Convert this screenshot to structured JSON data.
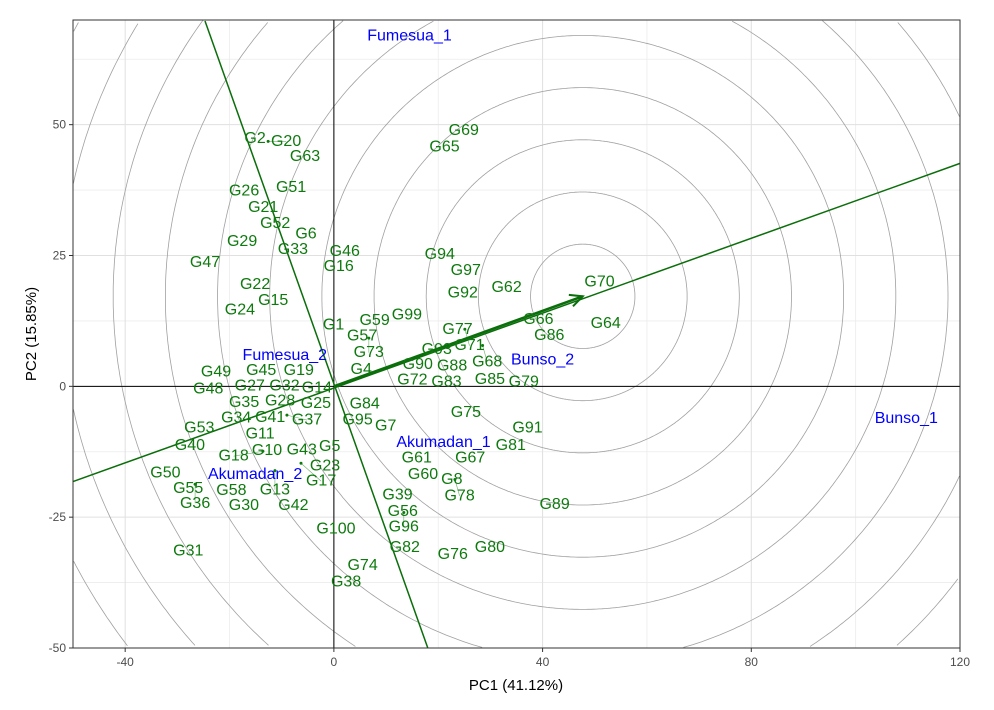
{
  "chart_data": {
    "type": "scatter",
    "xlabel": "PC1 (41.12%)",
    "ylabel": "PC2 (15.85%)",
    "xlim": [
      -50,
      120
    ],
    "ylim": [
      -50,
      70
    ],
    "xticks": [
      -40,
      0,
      40,
      80,
      120
    ],
    "yticks": [
      -50,
      -25,
      0,
      25,
      50
    ],
    "grid": true,
    "colors": {
      "genotype": "#0e7a0e",
      "environment": "#0000ff",
      "axis_line": "#0a6e0a",
      "circle": "#a0a0a0"
    },
    "environments": [
      {
        "name": "Fumesua_1",
        "x": 14.5,
        "y": 66.9
      },
      {
        "name": "Fumesua_2",
        "x": -9.4,
        "y": 5.9
      },
      {
        "name": "Bunso_2",
        "x": 40.0,
        "y": 5.0
      },
      {
        "name": "Bunso_1",
        "x": 109.7,
        "y": -6.1
      },
      {
        "name": "Akumadan_1",
        "x": 21.0,
        "y": -10.7
      },
      {
        "name": "Akumadan_2",
        "x": -15.1,
        "y": -16.8
      }
    ],
    "genotypes": [
      {
        "name": "G69",
        "x": 24.9,
        "y": 48.9
      },
      {
        "name": "G65",
        "x": 21.2,
        "y": 45.7
      },
      {
        "name": "G2",
        "x": -15.1,
        "y": 47.4
      },
      {
        "name": "G20",
        "x": -12.6,
        "y": 46.8
      },
      {
        "name": "G63",
        "x": -6.7,
        "y": 44.9
      },
      {
        "name": "G26",
        "x": -17.2,
        "y": 37.3
      },
      {
        "name": "G51",
        "x": -8.2,
        "y": 38.0
      },
      {
        "name": "G21",
        "x": -14.7,
        "y": 35.8
      },
      {
        "name": "G52",
        "x": -12.4,
        "y": 32.7
      },
      {
        "name": "G6",
        "x": -6.5,
        "y": 29.1
      },
      {
        "name": "G29",
        "x": -17.6,
        "y": 27.7
      },
      {
        "name": "G33",
        "x": -9.0,
        "y": 27.7
      },
      {
        "name": "G46",
        "x": 2.1,
        "y": 25.8
      },
      {
        "name": "G16",
        "x": 0.8,
        "y": 23.3
      },
      {
        "name": "G47",
        "x": -24.7,
        "y": 23.7
      },
      {
        "name": "G94",
        "x": 20.3,
        "y": 25.2
      },
      {
        "name": "G97",
        "x": 24.7,
        "y": 22.9
      },
      {
        "name": "G92",
        "x": 24.7,
        "y": 17.8
      },
      {
        "name": "G62",
        "x": 33.1,
        "y": 18.9
      },
      {
        "name": "G70",
        "x": 50.9,
        "y": 19.9
      },
      {
        "name": "G22",
        "x": -15.1,
        "y": 19.5
      },
      {
        "name": "G15",
        "x": -12.2,
        "y": 17.2
      },
      {
        "name": "G24",
        "x": -17.6,
        "y": 14.9
      },
      {
        "name": "G99",
        "x": 14.0,
        "y": 13.6
      },
      {
        "name": "G59",
        "x": 7.8,
        "y": 12.6
      },
      {
        "name": "G57",
        "x": 5.4,
        "y": 11.5
      },
      {
        "name": "G1",
        "x": 1.1,
        "y": 11.7
      },
      {
        "name": "G73",
        "x": 6.7,
        "y": 9.2
      },
      {
        "name": "G77",
        "x": 23.7,
        "y": 10.9
      },
      {
        "name": "G71",
        "x": 25.1,
        "y": 10.9
      },
      {
        "name": "G66",
        "x": 39.2,
        "y": 12.8
      },
      {
        "name": "G86",
        "x": 40.9,
        "y": 11.1
      },
      {
        "name": "G64",
        "x": 52.1,
        "y": 12.0
      },
      {
        "name": "G68",
        "x": 28.5,
        "y": 7.8
      },
      {
        "name": "G93",
        "x": 19.9,
        "y": 7.5
      },
      {
        "name": "G4",
        "x": 4.6,
        "y": 5.5
      },
      {
        "name": "G90",
        "x": 15.7,
        "y": 5.5
      },
      {
        "name": "G72",
        "x": 14.5,
        "y": 1.3
      },
      {
        "name": "G83",
        "x": 19.6,
        "y": 1.7
      },
      {
        "name": "G88",
        "x": 21.8,
        "y": 1.7
      },
      {
        "name": "G85",
        "x": 29.9,
        "y": 1.3
      },
      {
        "name": "G79",
        "x": 34.1,
        "y": 0.8
      },
      {
        "name": "G49",
        "x": -22.6,
        "y": 2.7
      },
      {
        "name": "G48",
        "x": -24.7,
        "y": 1.7
      },
      {
        "name": "G45",
        "x": -15.1,
        "y": 4.0
      },
      {
        "name": "G19",
        "x": -7.3,
        "y": 3.8
      },
      {
        "name": "G32",
        "x": -10.1,
        "y": 2.3
      },
      {
        "name": "G14",
        "x": -4.4,
        "y": 1.3
      },
      {
        "name": "G27",
        "x": -16.5,
        "y": 0.4
      },
      {
        "name": "G28",
        "x": -10.3,
        "y": -1.0
      },
      {
        "name": "G25",
        "x": -4.6,
        "y": -1.7
      },
      {
        "name": "G35",
        "x": -15.1,
        "y": -1.5
      },
      {
        "name": "G84",
        "x": 5.9,
        "y": -3.4
      },
      {
        "name": "G95",
        "x": 3.4,
        "y": -4.8
      },
      {
        "name": "G34",
        "x": -19.9,
        "y": -5.0
      },
      {
        "name": "G41",
        "x": -13.2,
        "y": -5.5
      },
      {
        "name": "G37",
        "x": -9.0,
        "y": -5.5
      },
      {
        "name": "G11",
        "x": -15.3,
        "y": -7.5
      },
      {
        "name": "G53",
        "x": -25.8,
        "y": -8.0
      },
      {
        "name": "G75",
        "x": 25.3,
        "y": -5.0
      },
      {
        "name": "G91",
        "x": 37.1,
        "y": -8.0
      },
      {
        "name": "G7",
        "x": 10.5,
        "y": -8.4
      },
      {
        "name": "G81",
        "x": 33.9,
        "y": -11.3
      },
      {
        "name": "G40",
        "x": -27.6,
        "y": -11.3
      },
      {
        "name": "G10",
        "x": -13.2,
        "y": -10.9
      },
      {
        "name": "G18",
        "x": -13.6,
        "y": -12.4
      },
      {
        "name": "G43",
        "x": -7.3,
        "y": -12.2
      },
      {
        "name": "G5",
        "x": -3.1,
        "y": -11.5
      },
      {
        "name": "G23",
        "x": -1.7,
        "y": -13.4
      },
      {
        "name": "G17",
        "x": -6.3,
        "y": -14.7
      },
      {
        "name": "G61",
        "x": 15.5,
        "y": -13.4
      },
      {
        "name": "G67",
        "x": 26.0,
        "y": -13.2
      },
      {
        "name": "G60",
        "x": 16.5,
        "y": -16.1
      },
      {
        "name": "G8",
        "x": 20.3,
        "y": -17.8
      },
      {
        "name": "G78",
        "x": 23.2,
        "y": -17.8
      },
      {
        "name": "G50",
        "x": -32.3,
        "y": -16.6
      },
      {
        "name": "G55",
        "x": -28.5,
        "y": -18.7
      },
      {
        "name": "G36",
        "x": -26.6,
        "y": -18.7
      },
      {
        "name": "G58",
        "x": -20.8,
        "y": -18.3
      },
      {
        "name": "G13",
        "x": -11.3,
        "y": -16.1
      },
      {
        "name": "G30",
        "x": -18.4,
        "y": -21.2
      },
      {
        "name": "G42",
        "x": -8.4,
        "y": -20.5
      },
      {
        "name": "G39",
        "x": 12.2,
        "y": -20.8
      },
      {
        "name": "G56",
        "x": 13.2,
        "y": -23.9
      },
      {
        "name": "G96",
        "x": 13.4,
        "y": -24.1
      },
      {
        "name": "G89",
        "x": 42.3,
        "y": -22.6
      },
      {
        "name": "G100",
        "x": 0.4,
        "y": -27.3
      },
      {
        "name": "G82",
        "x": 13.6,
        "y": -30.8
      },
      {
        "name": "G80",
        "x": 29.9,
        "y": -30.8
      },
      {
        "name": "G76",
        "x": 22.8,
        "y": -32.1
      },
      {
        "name": "G74",
        "x": 5.5,
        "y": -34.2
      },
      {
        "name": "G38",
        "x": 1.7,
        "y": -35.2
      },
      {
        "name": "G31",
        "x": -27.9,
        "y": -31.5
      }
    ],
    "aec_abscissa": {
      "from": [
        -50,
        -18.2
      ],
      "to": [
        120,
        42.6
      ],
      "arrow_tip": [
        47.7,
        17.2
      ]
    },
    "aec_ordinate": {
      "from": [
        -24.7,
        69.8
      ],
      "to": [
        18.0,
        -50.3
      ]
    },
    "circles": {
      "center": [
        47.7,
        17.2
      ],
      "step": 10
    }
  }
}
